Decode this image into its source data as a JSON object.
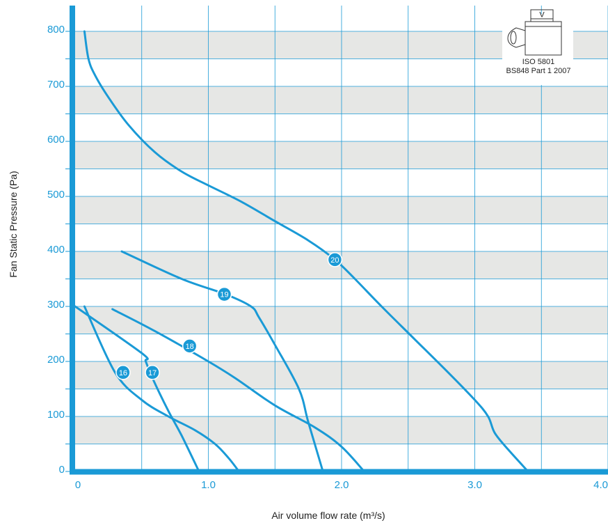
{
  "chart_data": {
    "type": "line",
    "xlabel": "Air volume flow rate (m³/s)",
    "ylabel": "Fan Static Pressure (Pa)",
    "xlim": [
      0,
      4.0
    ],
    "ylim": [
      0,
      800
    ],
    "x_ticks": [
      {
        "value": 0,
        "label": "0"
      },
      {
        "value": 1.0,
        "label": "1.0"
      },
      {
        "value": 2.0,
        "label": "2.0"
      },
      {
        "value": 3.0,
        "label": "3.0"
      },
      {
        "value": 4.0,
        "label": "4.0"
      }
    ],
    "y_ticks": [
      {
        "value": 0,
        "label": "0"
      },
      {
        "value": 100,
        "label": "100"
      },
      {
        "value": 200,
        "label": "200"
      },
      {
        "value": 300,
        "label": "300"
      },
      {
        "value": 400,
        "label": "400"
      },
      {
        "value": 500,
        "label": "500"
      },
      {
        "value": 600,
        "label": "600"
      },
      {
        "value": 700,
        "label": "700"
      },
      {
        "value": 800,
        "label": "800"
      }
    ],
    "grid": true,
    "line_color": "#1a9ad6",
    "band_color": "#e6e7e5",
    "series": [
      {
        "name": "16",
        "label_at": [
          0.36,
          180
        ],
        "points": [
          [
            0,
            300
          ],
          [
            0.5,
            215
          ],
          [
            0.53,
            200
          ],
          [
            0.58,
            170
          ],
          [
            0.7,
            110
          ],
          [
            0.8,
            65
          ],
          [
            0.93,
            0
          ]
        ]
      },
      {
        "name": "17",
        "label_at": [
          0.58,
          180
        ],
        "points": [
          [
            0.07,
            300
          ],
          [
            0.3,
            180
          ],
          [
            0.5,
            130
          ],
          [
            0.7,
            100
          ],
          [
            0.9,
            75
          ],
          [
            1.05,
            50
          ],
          [
            1.15,
            25
          ],
          [
            1.23,
            0
          ]
        ]
      },
      {
        "name": "18",
        "label_at": [
          0.86,
          228
        ],
        "points": [
          [
            0.28,
            295
          ],
          [
            0.6,
            255
          ],
          [
            1.0,
            200
          ],
          [
            1.2,
            170
          ],
          [
            1.5,
            120
          ],
          [
            1.8,
            80
          ],
          [
            2.0,
            45
          ],
          [
            2.17,
            0
          ]
        ]
      },
      {
        "name": "19",
        "label_at": [
          1.12,
          322
        ],
        "points": [
          [
            0.35,
            400
          ],
          [
            0.8,
            350
          ],
          [
            1.13,
            322
          ],
          [
            1.32,
            300
          ],
          [
            1.38,
            280
          ],
          [
            1.5,
            230
          ],
          [
            1.68,
            150
          ],
          [
            1.75,
            90
          ],
          [
            1.86,
            0
          ]
        ]
      },
      {
        "name": "20",
        "label_at": [
          1.95,
          385
        ],
        "points": [
          [
            0.07,
            800
          ],
          [
            0.1,
            750
          ],
          [
            0.15,
            720
          ],
          [
            0.25,
            680
          ],
          [
            0.4,
            630
          ],
          [
            0.6,
            580
          ],
          [
            0.8,
            545
          ],
          [
            1.0,
            520
          ],
          [
            1.25,
            490
          ],
          [
            1.5,
            455
          ],
          [
            1.75,
            420
          ],
          [
            1.95,
            385
          ],
          [
            2.1,
            350
          ],
          [
            2.3,
            300
          ],
          [
            2.55,
            240
          ],
          [
            2.8,
            180
          ],
          [
            3.0,
            130
          ],
          [
            3.1,
            100
          ],
          [
            3.15,
            70
          ],
          [
            3.25,
            40
          ],
          [
            3.4,
            0
          ]
        ]
      }
    ]
  },
  "standard": {
    "box_label": "V",
    "line1": "ISO 5801",
    "line2": "BS848 Part 1 2007"
  }
}
